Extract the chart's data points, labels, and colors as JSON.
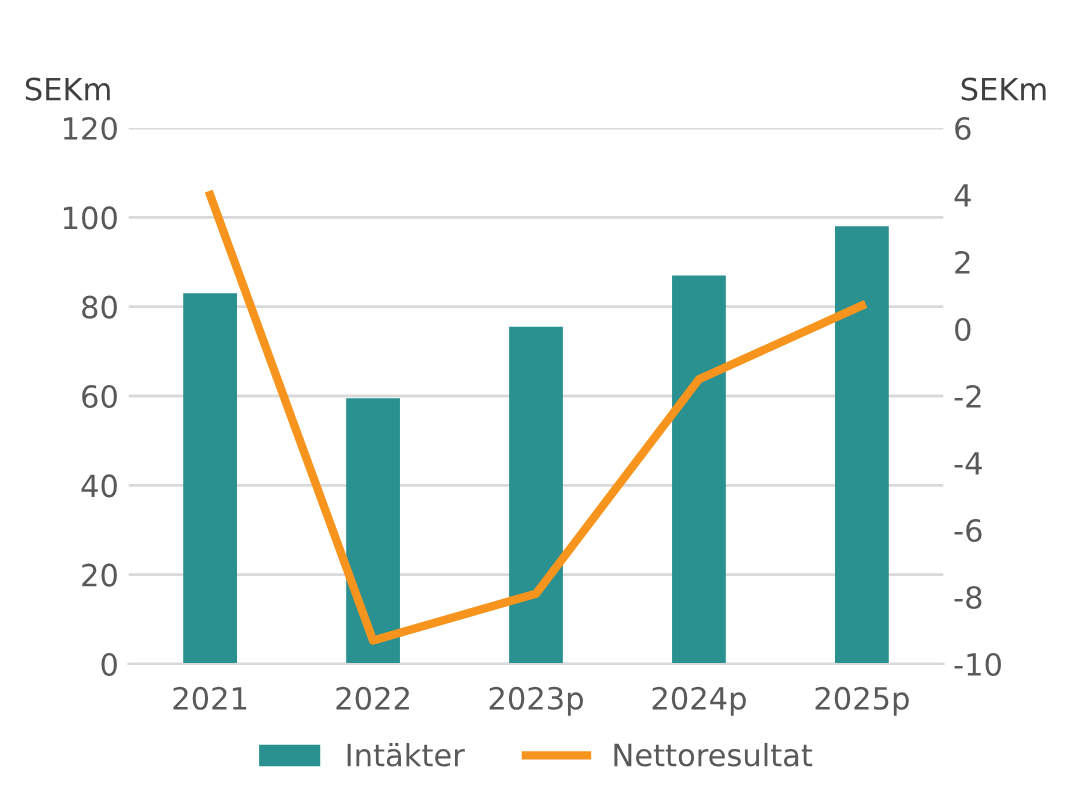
{
  "chart_data": {
    "type": "bar",
    "ylabel": "SEKm",
    "y2label": "SEKm",
    "categories": [
      "2021",
      "2022",
      "2023p",
      "2024p",
      "2025p"
    ],
    "series": [
      {
        "name": "Intäkter",
        "color": "#2a9090",
        "values": [
          83,
          59.5,
          75.5,
          87,
          98
        ]
      },
      {
        "name": "Nettoresultat",
        "type": "line",
        "axis": "y2",
        "color": "#f7941d",
        "values": [
          4,
          -9.3,
          -7.9,
          -1.5,
          0.7
        ]
      }
    ],
    "ylim": [
      0,
      120
    ],
    "yticks": [
      0,
      20,
      40,
      60,
      80,
      100,
      120
    ],
    "y2lim": [
      -10,
      6
    ],
    "y2ticks": [
      -10,
      -8,
      -6,
      -4,
      -2,
      0,
      2,
      4,
      6
    ],
    "grid": "y",
    "legend": "bottom",
    "marker": "none",
    "line_style": "solid"
  }
}
